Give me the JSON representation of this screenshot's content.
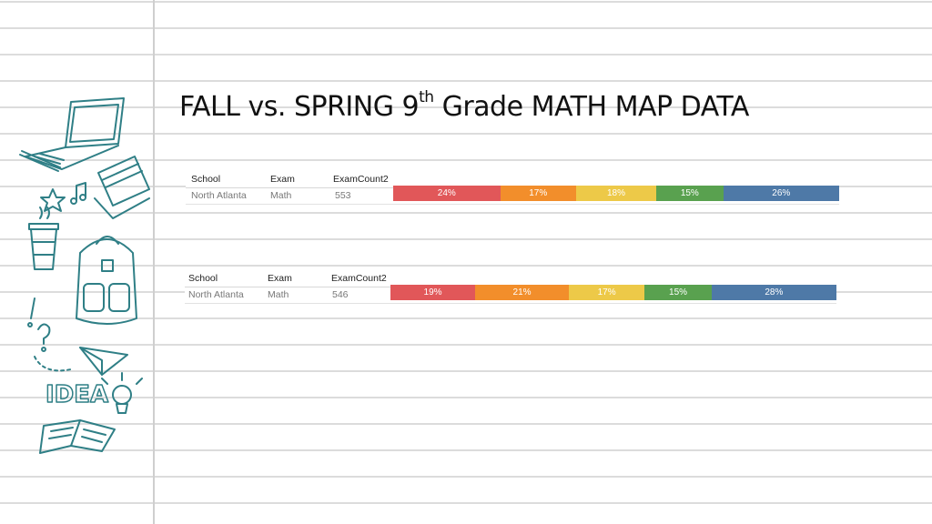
{
  "slide": {
    "title_main": "FALL vs. SPRING 9",
    "title_sup": "th",
    "title_rest": " Grade MATH MAP DATA"
  },
  "decorations": {
    "doodle_text": "IDEA",
    "icons": [
      "laptop-icon",
      "pen-icon",
      "books-icon",
      "star-icon",
      "music-note-icon",
      "coffee-cup-icon",
      "backpack-icon",
      "question-mark-icon",
      "exclamation-icon",
      "paper-plane-icon",
      "light-bulb-icon",
      "open-book-icon"
    ],
    "line_color": "#2f7f86"
  },
  "colors": {
    "band1": "#e15759",
    "band2": "#f28e2b",
    "band3": "#edc948",
    "band4": "#59a14f",
    "band5": "#4e79a7"
  },
  "chart_data": [
    {
      "type": "bar",
      "orientation": "horizontal-stacked-100",
      "columns": [
        "School",
        "Exam",
        "ExamCount2"
      ],
      "row": {
        "school": "North Atlanta",
        "exam": "Math",
        "examcount": "553"
      },
      "values": [
        24,
        17,
        18,
        15,
        26
      ],
      "labels": [
        "24%",
        "17%",
        "18%",
        "15%",
        "26%"
      ]
    },
    {
      "type": "bar",
      "orientation": "horizontal-stacked-100",
      "columns": [
        "School",
        "Exam",
        "ExamCount2"
      ],
      "row": {
        "school": "North Atlanta",
        "exam": "Math",
        "examcount": "546"
      },
      "values": [
        19,
        21,
        17,
        15,
        28
      ],
      "labels": [
        "19%",
        "21%",
        "17%",
        "15%",
        "28%"
      ]
    }
  ]
}
